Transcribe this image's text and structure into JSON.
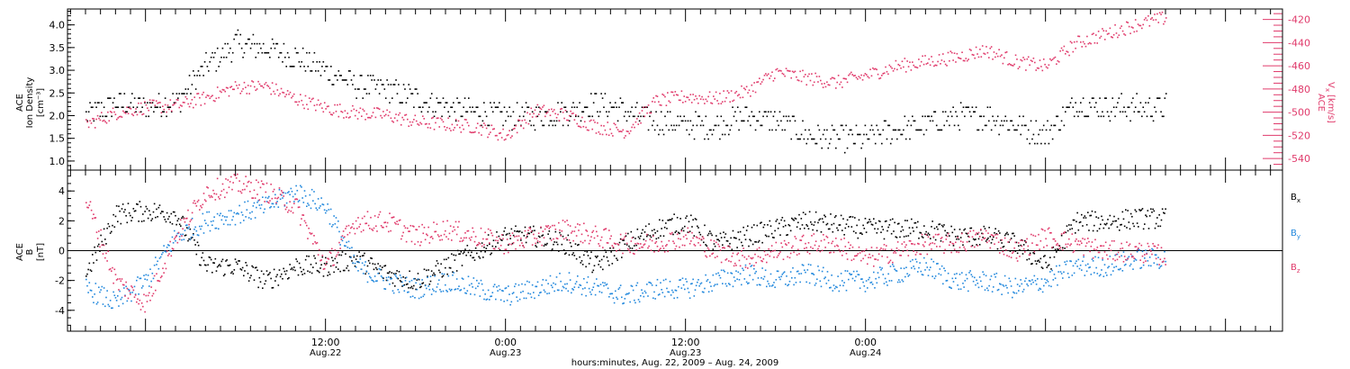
{
  "colors": {
    "black": "#000000",
    "red": "#e03a6b",
    "blue": "#2288dd"
  },
  "chart_data": [
    {
      "type": "scatter",
      "panel": "top",
      "y_axis_left": {
        "label_line1": "ACE",
        "label_line2": "Ion Density",
        "label_unit": "[cm⁻³]",
        "ylim": [
          0.8,
          4.35
        ],
        "ticks": [
          1.0,
          1.5,
          2.0,
          2.5,
          3.0,
          3.5,
          4.0
        ],
        "tick_labels": [
          "1.0",
          "1.5",
          "2.0",
          "2.5",
          "3.0",
          "3.5",
          "4.0"
        ]
      },
      "y_axis_right": {
        "label_line1": "ACE",
        "label_line2": "V",
        "label_sub": "x",
        "label_unit": "[km/s]",
        "ylim": [
          -550,
          -411
        ],
        "ticks": [
          -540,
          -520,
          -500,
          -480,
          -460,
          -440,
          -420
        ],
        "tick_labels": [
          "-540",
          "-520",
          "-500",
          "-480",
          "-460",
          "-440",
          "-420"
        ],
        "color": "#e03a6b"
      },
      "series": [
        {
          "key": "density",
          "color": "#000000",
          "anchors_hours": [
            -16,
            -14,
            -12,
            -10,
            -8,
            -6,
            -4,
            -2,
            0,
            2,
            4,
            6,
            8,
            10,
            12,
            14,
            16,
            18,
            20,
            22,
            24,
            26,
            28,
            30,
            32,
            34,
            36,
            38,
            40,
            42,
            44,
            46,
            48,
            50,
            52,
            54,
            56
          ],
          "values": [
            2.0,
            2.3,
            2.2,
            2.3,
            3.1,
            3.6,
            3.5,
            3.3,
            3.0,
            2.7,
            2.6,
            2.4,
            2.2,
            2.1,
            2.0,
            2.0,
            2.1,
            2.3,
            2.1,
            1.9,
            1.8,
            1.8,
            2.0,
            1.9,
            1.6,
            1.5,
            1.5,
            1.7,
            1.8,
            2.0,
            2.0,
            1.8,
            1.6,
            2.3,
            2.2,
            2.2,
            2.2
          ]
        },
        {
          "key": "vx",
          "color": "#e03a6b",
          "anchors_hours": [
            -16,
            -14,
            -12,
            -10,
            -8,
            -6,
            -4,
            -2,
            0,
            2,
            4,
            6,
            8,
            10,
            12,
            14,
            16,
            18,
            20,
            22,
            24,
            26,
            28,
            30,
            32,
            34,
            36,
            38,
            40,
            42,
            44,
            46,
            48,
            50,
            52,
            54,
            56
          ],
          "values": [
            -510,
            -500,
            -495,
            -494,
            -487,
            -478,
            -477,
            -488,
            -496,
            -500,
            -502,
            -508,
            -510,
            -512,
            -520,
            -498,
            -502,
            -512,
            -516,
            -490,
            -486,
            -488,
            -482,
            -465,
            -470,
            -474,
            -468,
            -460,
            -456,
            -452,
            -446,
            -456,
            -460,
            -440,
            -432,
            -424,
            -418
          ]
        }
      ]
    },
    {
      "type": "scatter",
      "panel": "bottom",
      "y_axis_left": {
        "label_line1": "ACE",
        "label_line2": "B",
        "label_unit": "[nT]",
        "ylim": [
          -5.4,
          5.4
        ],
        "ticks": [
          -4,
          -2,
          0,
          2,
          4
        ],
        "tick_labels": [
          "-4",
          "-2",
          "0",
          "2",
          "4"
        ]
      },
      "zero_line": true,
      "series": [
        {
          "key": "bx",
          "name": "B",
          "sub": "x",
          "color": "#000000",
          "anchors_hours": [
            -16,
            -14,
            -12,
            -10,
            -8,
            -6,
            -4,
            -2,
            0,
            2,
            4,
            6,
            8,
            10,
            12,
            14,
            16,
            18,
            20,
            22,
            24,
            26,
            28,
            30,
            32,
            34,
            36,
            38,
            40,
            42,
            44,
            46,
            48,
            50,
            52,
            54,
            56
          ],
          "values": [
            -1.5,
            2.5,
            2.7,
            2.5,
            -1.0,
            -1.0,
            -2.0,
            -1.0,
            -1.0,
            -0.5,
            -1.5,
            -2.0,
            -1.0,
            0.0,
            1.0,
            1.0,
            0.5,
            -1.0,
            0.5,
            1.5,
            2.0,
            0.5,
            1.0,
            1.5,
            2.0,
            1.8,
            1.5,
            1.5,
            1.5,
            1.0,
            1.0,
            0.5,
            -1.0,
            2.0,
            2.0,
            2.2,
            2.2
          ]
        },
        {
          "key": "by",
          "name": "B",
          "sub": "y",
          "color": "#2288dd",
          "anchors_hours": [
            -16,
            -14,
            -12,
            -10,
            -8,
            -6,
            -4,
            -2,
            0,
            2,
            4,
            6,
            8,
            10,
            12,
            14,
            16,
            18,
            20,
            22,
            24,
            26,
            28,
            30,
            32,
            34,
            36,
            38,
            40,
            42,
            44,
            46,
            48,
            50,
            52,
            54,
            56
          ],
          "values": [
            -2.5,
            -3.5,
            -2.0,
            1.0,
            2.0,
            2.5,
            3.0,
            4.0,
            3.0,
            -1.0,
            -2.0,
            -2.5,
            -2.0,
            -2.5,
            -3.0,
            -2.5,
            -2.0,
            -2.5,
            -3.0,
            -2.5,
            -2.5,
            -2.0,
            -1.5,
            -2.0,
            -1.5,
            -2.0,
            -2.0,
            -1.5,
            -1.0,
            -2.0,
            -2.0,
            -2.5,
            -2.0,
            -1.0,
            -1.0,
            -0.5,
            -0.5
          ]
        },
        {
          "key": "bz",
          "name": "B",
          "sub": "z",
          "color": "#e03a6b",
          "anchors_hours": [
            -16,
            -14,
            -12,
            -10,
            -8,
            -6,
            -4,
            -2,
            0,
            2,
            4,
            6,
            8,
            10,
            12,
            14,
            16,
            18,
            20,
            22,
            24,
            26,
            28,
            30,
            32,
            34,
            36,
            38,
            40,
            42,
            44,
            46,
            48,
            50,
            52,
            54,
            56
          ],
          "values": [
            3.5,
            -2.0,
            -3.5,
            1.0,
            4.0,
            4.5,
            4.0,
            3.0,
            -1.0,
            2.0,
            2.0,
            1.0,
            1.5,
            1.0,
            0.5,
            1.0,
            1.5,
            1.0,
            0.5,
            0.5,
            1.0,
            0.0,
            -0.5,
            0.0,
            0.5,
            0.5,
            -0.5,
            0.0,
            0.5,
            0.5,
            1.0,
            0.0,
            1.0,
            0.5,
            0.0,
            0.0,
            -0.3
          ]
        }
      ]
    }
  ],
  "x_axis": {
    "range_hours": [
      -17.2,
      63.8
    ],
    "major_ticks": [
      {
        "hours": 0,
        "time": "12:00",
        "date": "Aug.22"
      },
      {
        "hours": 12,
        "time": "0:00",
        "date": "Aug.23"
      },
      {
        "hours": 24,
        "time": "12:00",
        "date": "Aug.23"
      },
      {
        "hours": 36,
        "time": "0:00",
        "date": "Aug.24"
      }
    ],
    "title": "hours:minutes, Aug. 22, 2009 – Aug. 24, 2009"
  }
}
